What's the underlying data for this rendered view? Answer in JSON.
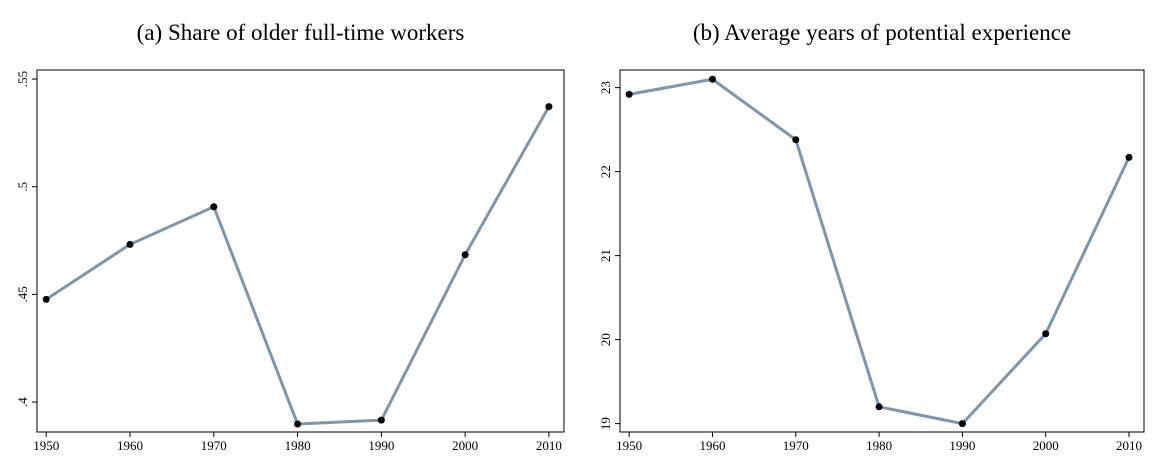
{
  "chart_data": [
    {
      "type": "line",
      "title": "(a) Share of older full-time workers",
      "x": [
        1950,
        1960,
        1970,
        1980,
        1990,
        2000,
        2010
      ],
      "series": [
        {
          "color": "#7f95aa",
          "values": [
            0.4477,
            0.4732,
            0.4907,
            0.3898,
            0.3916,
            0.4684,
            0.5372
          ]
        }
      ],
      "xlim": [
        1948.9,
        2011.8
      ],
      "xticks": [
        1950,
        1960,
        1970,
        1980,
        1990,
        2000,
        2010
      ],
      "ylim": [
        0.3861,
        0.5542
      ],
      "yticks": [
        {
          "value": 0.4,
          "label": ".4"
        },
        {
          "value": 0.45,
          "label": ".45"
        },
        {
          "value": 0.5,
          "label": ".5"
        },
        {
          "value": 0.55,
          "label": ".55"
        }
      ],
      "marker_color": "#000000"
    },
    {
      "type": "line",
      "title": "(b) Average years of potential experience",
      "x": [
        1950,
        1960,
        1970,
        1980,
        1990,
        2000,
        2010
      ],
      "series": [
        {
          "color": "#7f95aa",
          "values": [
            22.92,
            23.1,
            22.38,
            19.2,
            19.0,
            20.07,
            22.17
          ]
        }
      ],
      "xlim": [
        1948.9,
        2011.8
      ],
      "xticks": [
        1950,
        1960,
        1970,
        1980,
        1990,
        2000,
        2010
      ],
      "ylim": [
        18.9,
        23.21
      ],
      "yticks": [
        19,
        20,
        21,
        22,
        23
      ],
      "marker_color": "#000000"
    }
  ]
}
